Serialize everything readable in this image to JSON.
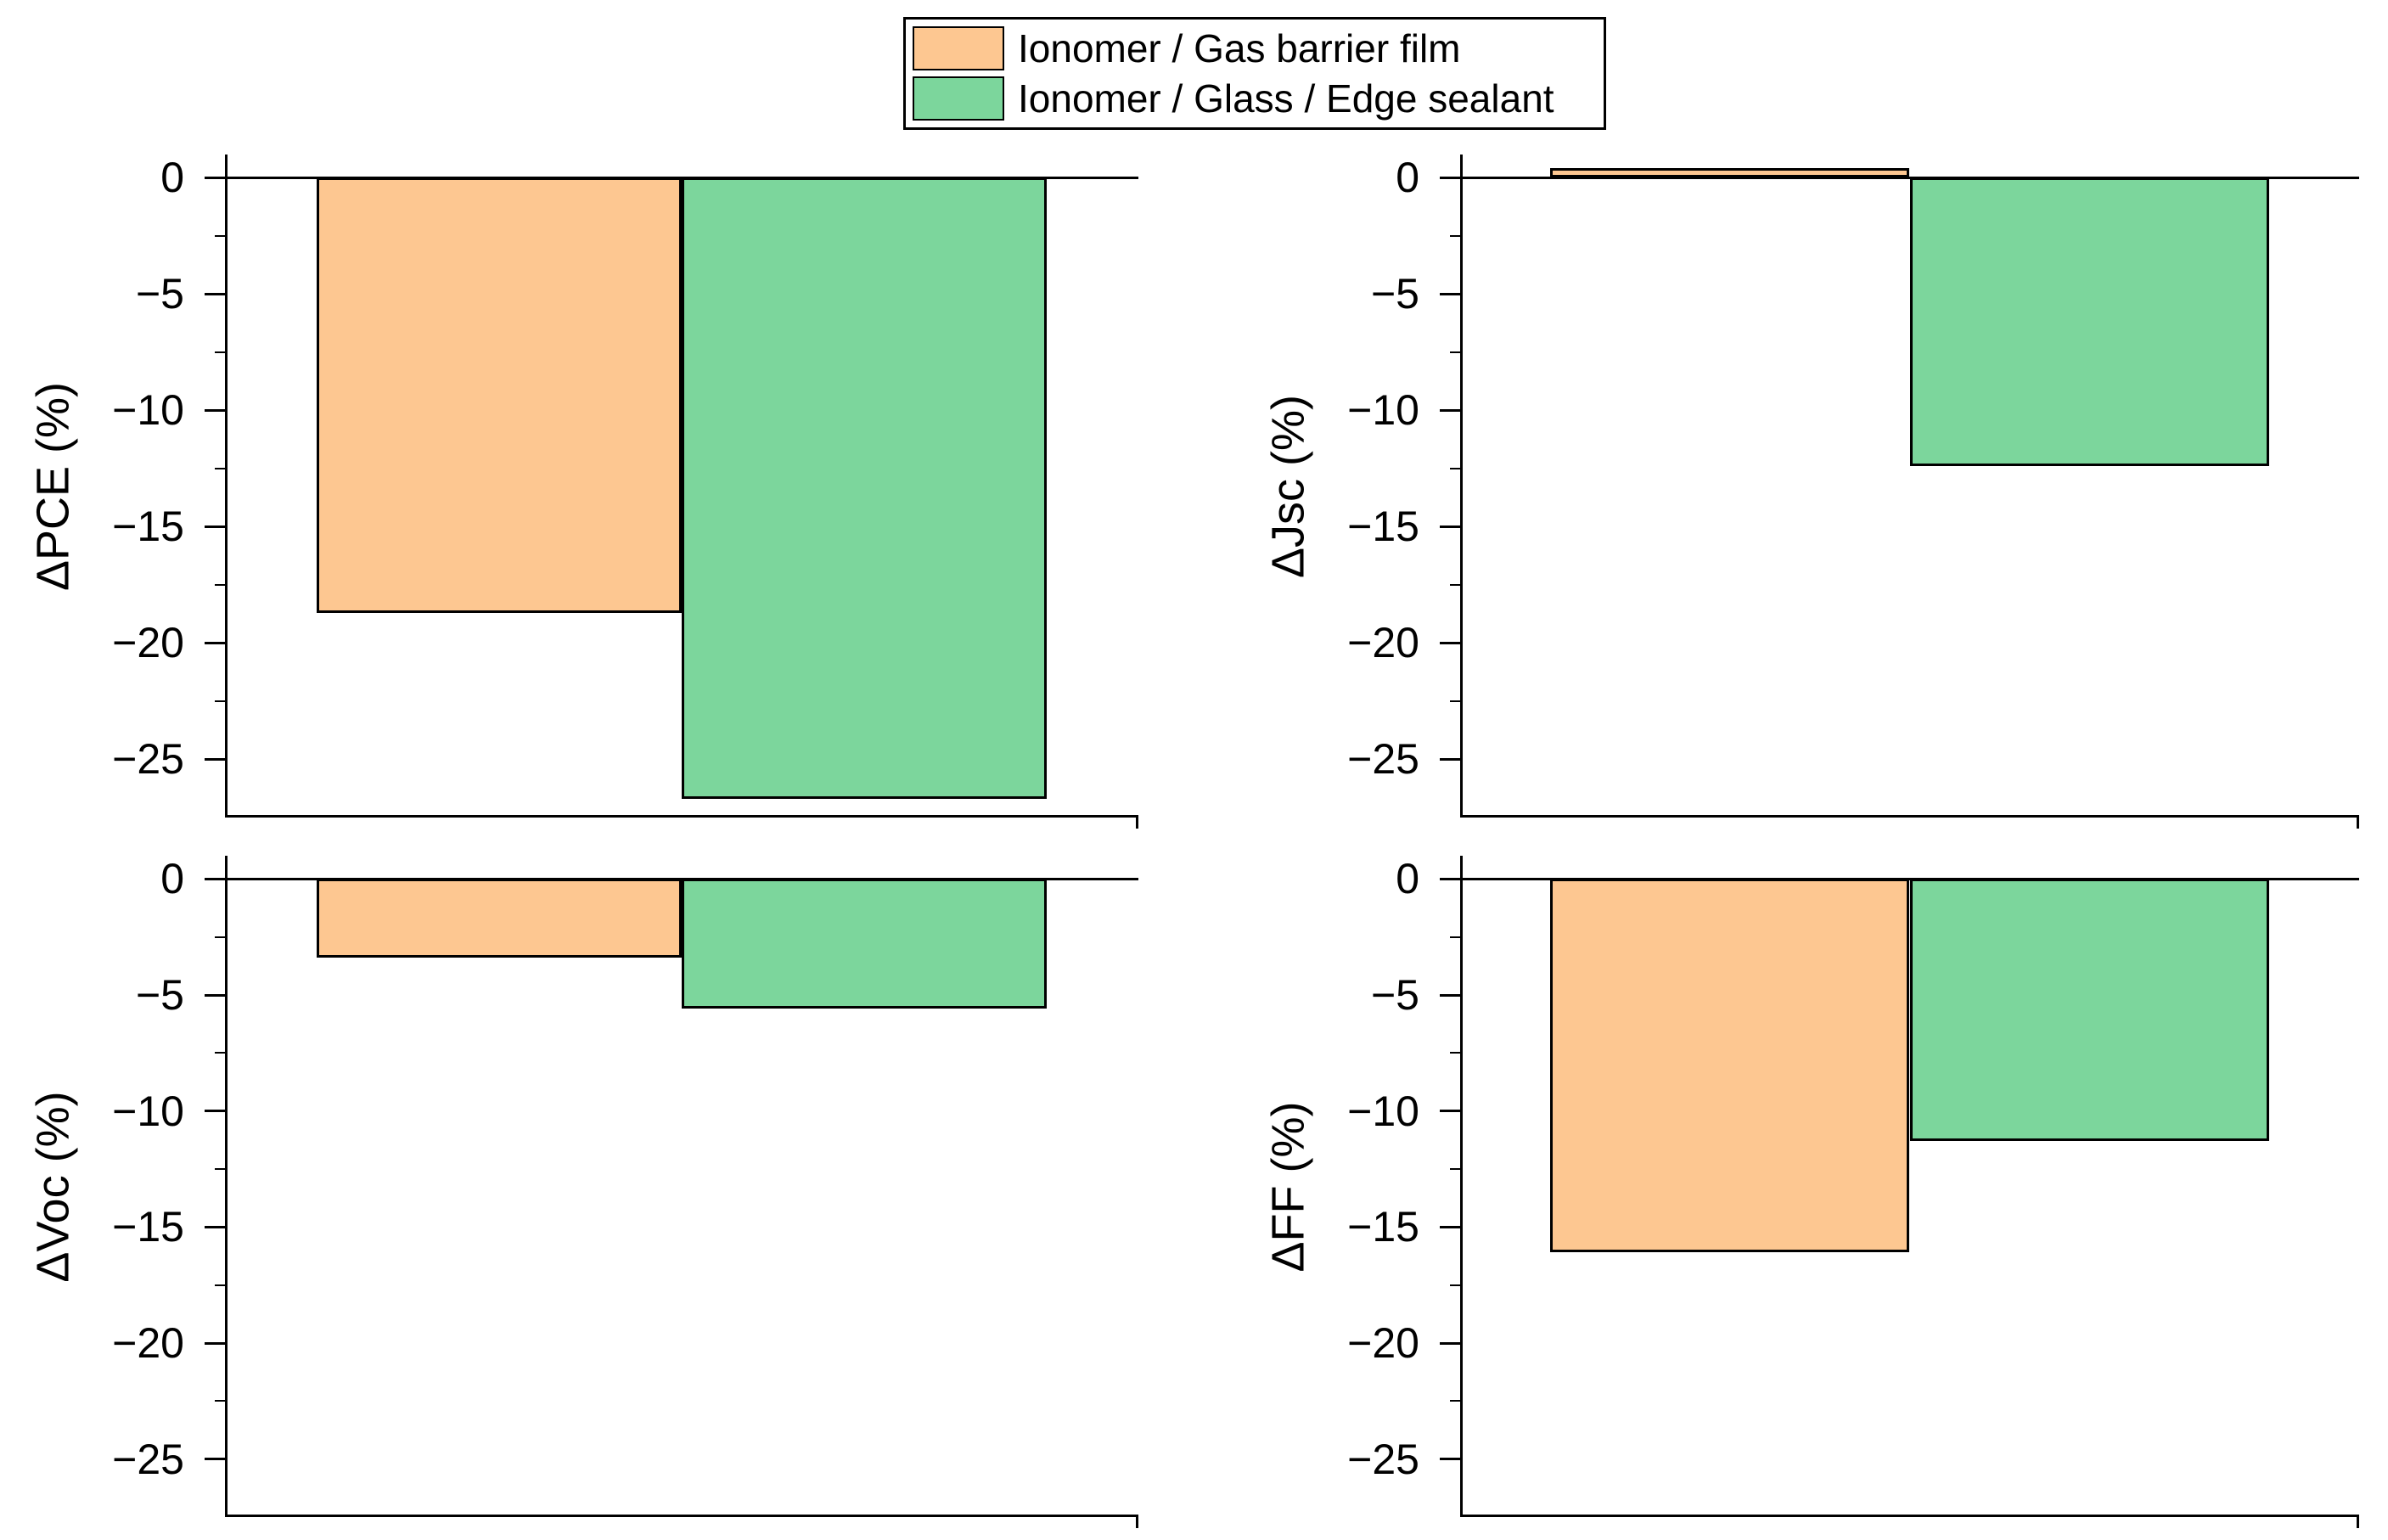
{
  "legend": {
    "entries": [
      {
        "label": "Ionomer / Gas barrier film",
        "color": "#FDC791"
      },
      {
        "label": "Ionomer / Glass / Edge sealant",
        "color": "#7CD69C"
      }
    ]
  },
  "colors": {
    "series_orange": "#FDC791",
    "series_green": "#7CD69C",
    "axis": "#000000",
    "background": "#FFFFFF"
  },
  "chart_data": [
    {
      "type": "bar",
      "panel": "top-left",
      "ylabel": "ΔPCE (%)",
      "categories": [
        "Ionomer / Gas barrier film",
        "Ionomer / Glass / Edge sealant"
      ],
      "values": [
        -18.7,
        -26.7
      ],
      "ylim": [
        -27.5,
        1.0
      ],
      "yticks": [
        0,
        -5,
        -10,
        -15,
        -20,
        -25
      ],
      "ytick_labels": [
        "0",
        "−5",
        "−10",
        "−15",
        "−20",
        "−25"
      ],
      "minor_tick_step": 2.5,
      "grid": "off",
      "xticks": "none"
    },
    {
      "type": "bar",
      "panel": "top-right",
      "ylabel": "ΔJsc (%)",
      "categories": [
        "Ionomer / Gas barrier film",
        "Ionomer / Glass / Edge sealant"
      ],
      "values": [
        0.4,
        -12.4
      ],
      "ylim": [
        -27.5,
        1.0
      ],
      "yticks": [
        0,
        -5,
        -10,
        -15,
        -20,
        -25
      ],
      "ytick_labels": [
        "0",
        "−5",
        "−10",
        "−15",
        "−20",
        "−25"
      ],
      "minor_tick_step": 2.5,
      "grid": "off",
      "xticks": "none"
    },
    {
      "type": "bar",
      "panel": "bottom-left",
      "ylabel": "ΔVoc (%)",
      "categories": [
        "Ionomer / Gas barrier film",
        "Ionomer / Glass / Edge sealant"
      ],
      "values": [
        -3.4,
        -5.6
      ],
      "ylim": [
        -27.5,
        1.0
      ],
      "yticks": [
        0,
        -5,
        -10,
        -15,
        -20,
        -25
      ],
      "ytick_labels": [
        "0",
        "−5",
        "−10",
        "−15",
        "−20",
        "−25"
      ],
      "minor_tick_step": 2.5,
      "grid": "off",
      "xticks": "none"
    },
    {
      "type": "bar",
      "panel": "bottom-right",
      "ylabel": "ΔFF (%)",
      "categories": [
        "Ionomer / Gas barrier film",
        "Ionomer / Glass / Edge sealant"
      ],
      "values": [
        -16.1,
        -11.3
      ],
      "ylim": [
        -27.5,
        1.0
      ],
      "yticks": [
        0,
        -5,
        -10,
        -15,
        -20,
        -25
      ],
      "ytick_labels": [
        "0",
        "−5",
        "−10",
        "−15",
        "−20",
        "−25"
      ],
      "minor_tick_step": 2.5,
      "grid": "off",
      "xticks": "none"
    }
  ]
}
